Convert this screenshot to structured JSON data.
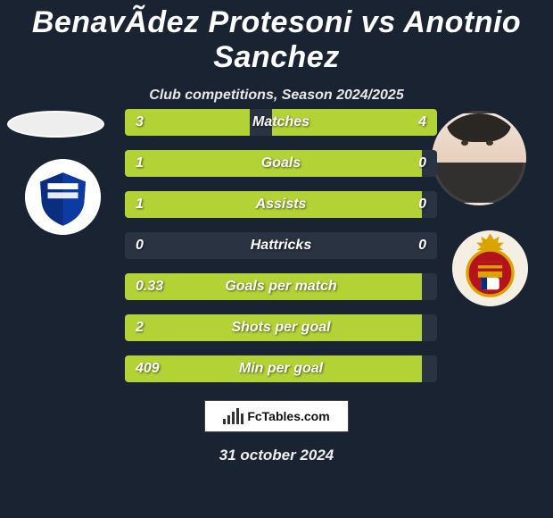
{
  "colors": {
    "background": "#1a2332",
    "row_bg": "#2a3342",
    "fill": "#b3d235",
    "text": "#ffffff"
  },
  "header": {
    "title": "BenavÃ­dez Protesoni vs Anotnio Sanchez",
    "subtitle": "Club competitions, Season 2024/2025"
  },
  "stats": {
    "rows": [
      {
        "label": "Matches",
        "left": "3",
        "right": "4",
        "left_pct": 40,
        "right_pct": 53
      },
      {
        "label": "Goals",
        "left": "1",
        "right": "0",
        "left_pct": 95,
        "right_pct": 0
      },
      {
        "label": "Assists",
        "left": "1",
        "right": "0",
        "left_pct": 95,
        "right_pct": 0
      },
      {
        "label": "Hattricks",
        "left": "0",
        "right": "0",
        "left_pct": 0,
        "right_pct": 0
      },
      {
        "label": "Goals per match",
        "left": "0.33",
        "right": "",
        "left_pct": 95,
        "right_pct": 0
      },
      {
        "label": "Shots per goal",
        "left": "2",
        "right": "",
        "left_pct": 95,
        "right_pct": 0
      },
      {
        "label": "Min per goal",
        "left": "409",
        "right": "",
        "left_pct": 95,
        "right_pct": 0
      }
    ]
  },
  "footer": {
    "logo_text": "FcTables.com",
    "date": "31 october 2024"
  },
  "avatars": {
    "left_player": "ellipse-placeholder",
    "left_club": "alaves-crest",
    "right_player": "face-photo",
    "right_club": "mallorca-crest"
  }
}
